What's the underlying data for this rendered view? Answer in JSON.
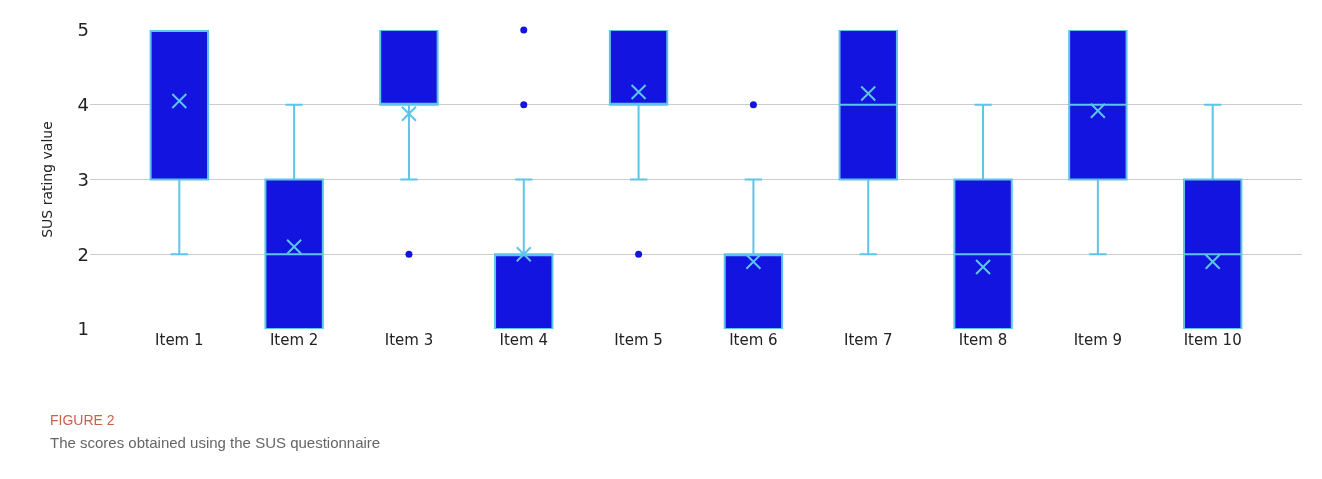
{
  "chart_data": {
    "type": "box",
    "ylabel": "SUS rating value",
    "categories": [
      "Item 1",
      "Item 2",
      "Item 3",
      "Item 4",
      "Item 5",
      "Item 6",
      "Item 7",
      "Item 8",
      "Item 9",
      "Item 10"
    ],
    "boxes": [
      {
        "low": 2,
        "q1": 3,
        "median": 5,
        "q3": 5,
        "mean": 4.05
      },
      {
        "q1": 1,
        "median": 2,
        "q3": 3,
        "high": 4,
        "mean": 2.1
      },
      {
        "low": 3,
        "q1": 4,
        "median": 4,
        "q3": 5,
        "mean": 3.88,
        "outliers": [
          2
        ]
      },
      {
        "q1": 1,
        "median": 2,
        "q3": 2,
        "high": 3,
        "mean": 2.0,
        "outliers": [
          4,
          5
        ]
      },
      {
        "low": 3,
        "q1": 4,
        "median": 4,
        "q3": 5,
        "mean": 4.17,
        "outliers": [
          2
        ]
      },
      {
        "q1": 1,
        "median": 2,
        "q3": 2,
        "high": 3,
        "mean": 1.9,
        "outliers": [
          4
        ]
      },
      {
        "low": 2,
        "q1": 3,
        "median": 4,
        "q3": 5,
        "mean": 4.15
      },
      {
        "q1": 1,
        "median": 2,
        "q3": 3,
        "high": 4,
        "mean": 1.83
      },
      {
        "low": 2,
        "q1": 3,
        "median": 4,
        "q3": 5,
        "mean": 3.92
      },
      {
        "q1": 1,
        "median": 2,
        "q3": 3,
        "high": 4,
        "mean": 1.9
      }
    ],
    "color": "#1414e0",
    "marker": "circle",
    "ylim": [
      1,
      5
    ],
    "yticks": [
      1,
      2,
      3,
      4,
      5
    ],
    "grid": "y",
    "annotations": [
      "FIGURE 2",
      "The scores obtained using the SUS questionnaire"
    ]
  }
}
